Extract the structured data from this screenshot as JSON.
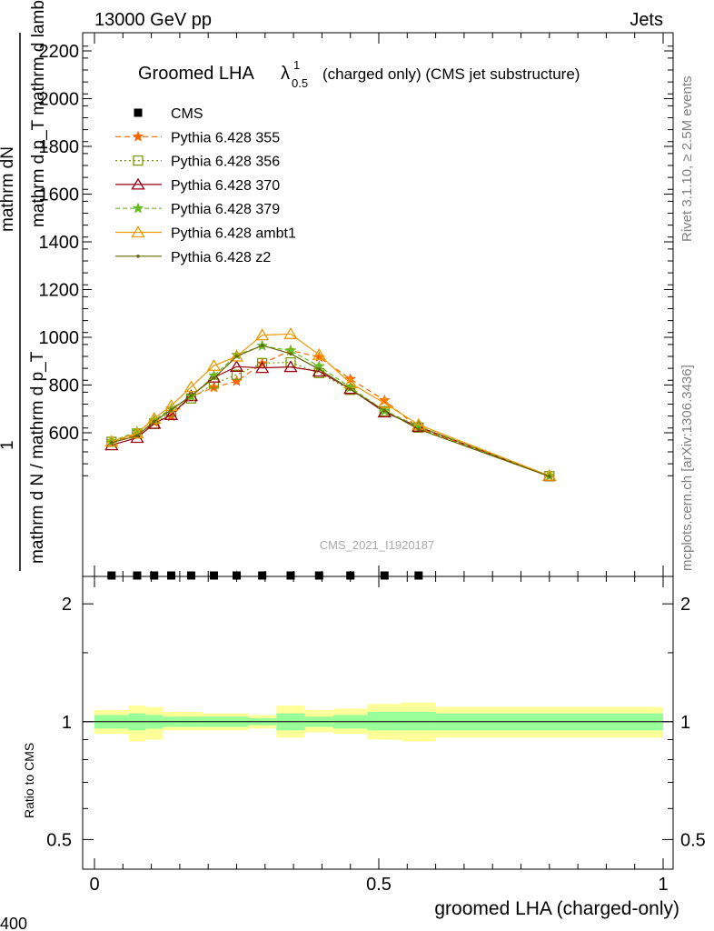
{
  "header": {
    "left": "13000 GeV pp",
    "right": "Jets"
  },
  "side_labels": {
    "rivet": "Rivet 3.1.10, ≥ 2.5M events",
    "mcplots": "mcplots.cern.ch [arXiv:1306.3436]"
  },
  "watermark": "CMS_2021_I1920187",
  "corner_label": "400",
  "chart_data": [
    {
      "type": "line",
      "title": "Groomed LHA",
      "title_lambda": "λ",
      "title_sup": "1",
      "title_sub": "0.5",
      "title_suffix": "(charged only) (CMS jet substructure)",
      "xlabel": "groomed LHA (charged-only)",
      "ylabel_top": "mathrm d N / mathrm d p_T mathrm d lambda",
      "ylabel_top_num": "1",
      "ylabel_mid": "mathrm d N / mathrm d p_T mathrm d p_T mathrm d lambda",
      "ylabel_mid_sub": "T",
      "ylabel_den": "mathrm d N / mathrm d p_T",
      "ylabel_num": "1",
      "ylabel_a": "mathrm dN",
      "ylabel_b": "mathrm d p_T mathrm d lambda",
      "ylabel_c": "1",
      "ylabel_line1": "mathrm dN",
      "ylabel_line2": "mathrm d p_T mathrm d lambda",
      "yticks": [
        "600",
        "800",
        "1000",
        "1200",
        "1400",
        "1600",
        "1800",
        "2000",
        "2200"
      ],
      "xlim": [
        0,
        1
      ],
      "ylim": [
        400,
        2270
      ],
      "series": [
        {
          "name": "CMS",
          "color": "#000000",
          "marker": "square",
          "x": [
            0.03,
            0.075,
            0.105,
            0.135,
            0.17,
            0.21,
            0.25,
            0.295,
            0.345,
            0.395,
            0.45,
            0.51,
            0.57
          ],
          "y": [
            400,
            400,
            400,
            400,
            400,
            400,
            400,
            400,
            400,
            400,
            400,
            400,
            400
          ]
        },
        {
          "name": "Pythia 6.428 355",
          "color": "#ff6600",
          "marker": "star",
          "dash": "6,4",
          "x": [
            0.03,
            0.075,
            0.105,
            0.135,
            0.17,
            0.21,
            0.25,
            0.295,
            0.345,
            0.395,
            0.45,
            0.51,
            0.57,
            0.8
          ],
          "y": [
            560,
            593,
            645,
            668,
            752,
            790,
            816,
            890,
            945,
            917,
            825,
            736,
            620,
            419
          ]
        },
        {
          "name": "Pythia 6.428 356",
          "color": "#779900",
          "marker": "open-square",
          "dash": "2,3",
          "x": [
            0.03,
            0.075,
            0.105,
            0.135,
            0.17,
            0.21,
            0.25,
            0.295,
            0.345,
            0.395,
            0.45,
            0.51,
            0.57,
            0.8
          ],
          "y": [
            562,
            597,
            637,
            688,
            744,
            806,
            843,
            892,
            895,
            850,
            780,
            690,
            622,
            418
          ]
        },
        {
          "name": "Pythia 6.428 370",
          "color": "#990011",
          "marker": "open-triangle",
          "dash": "",
          "x": [
            0.03,
            0.075,
            0.105,
            0.135,
            0.17,
            0.21,
            0.25,
            0.295,
            0.345,
            0.395,
            0.45,
            0.51,
            0.57,
            0.8
          ],
          "y": [
            548,
            579,
            638,
            675,
            754,
            832,
            877,
            872,
            876,
            857,
            784,
            686,
            625,
            419
          ]
        },
        {
          "name": "Pythia 6.428 379",
          "color": "#66bb22",
          "marker": "star",
          "dash": "5,3",
          "x": [
            0.03,
            0.075,
            0.105,
            0.135,
            0.17,
            0.21,
            0.25,
            0.295,
            0.345,
            0.395,
            0.45,
            0.51,
            0.57,
            0.8
          ],
          "y": [
            564,
            605,
            653,
            701,
            752,
            839,
            926,
            964,
            944,
            879,
            790,
            692,
            627,
            420
          ]
        },
        {
          "name": "Pythia 6.428 ambt1",
          "color": "#ee9900",
          "marker": "open-triangle",
          "dash": "",
          "x": [
            0.03,
            0.075,
            0.105,
            0.135,
            0.17,
            0.21,
            0.25,
            0.295,
            0.345,
            0.395,
            0.45,
            0.51,
            0.57,
            0.8
          ],
          "y": [
            563,
            598,
            660,
            713,
            792,
            881,
            920,
            1009,
            1014,
            927,
            808,
            724,
            634,
            420
          ]
        },
        {
          "name": "Pythia 6.428 z2",
          "color": "#666600",
          "marker": "dot",
          "dash": "",
          "x": [
            0.03,
            0.075,
            0.105,
            0.135,
            0.17,
            0.21,
            0.25,
            0.295,
            0.345,
            0.395,
            0.45,
            0.51,
            0.57,
            0.8
          ],
          "y": [
            559,
            587,
            647,
            696,
            755,
            829,
            920,
            966,
            931,
            866,
            783,
            693,
            615,
            417
          ]
        }
      ]
    },
    {
      "type": "area",
      "xlabel": "groomed LHA (charged-only)",
      "ylabel": "Ratio to CMS",
      "yscale": "log",
      "ylim": [
        0.42,
        2.35
      ],
      "yticks": [
        0.5,
        1,
        2
      ],
      "ytick_labels": [
        "0.5",
        "1",
        "2"
      ],
      "xlim": [
        0,
        1
      ],
      "xticks": [
        0,
        0.5,
        1
      ],
      "xtick_labels": [
        "0",
        "0.5",
        "1"
      ],
      "inner_band_color": "#99ff99",
      "outer_band_color": "#ffff99",
      "reference_line": 1,
      "bins": [
        {
          "x0": 0.0,
          "x1": 0.06,
          "inner": [
            0.96,
            1.04
          ],
          "outer": [
            0.93,
            1.07
          ]
        },
        {
          "x0": 0.06,
          "x1": 0.09,
          "inner": [
            0.95,
            1.05
          ],
          "outer": [
            0.89,
            1.1
          ]
        },
        {
          "x0": 0.09,
          "x1": 0.12,
          "inner": [
            0.96,
            1.04
          ],
          "outer": [
            0.9,
            1.09
          ]
        },
        {
          "x0": 0.12,
          "x1": 0.15,
          "inner": [
            0.97,
            1.03
          ],
          "outer": [
            0.95,
            1.06
          ]
        },
        {
          "x0": 0.15,
          "x1": 0.19,
          "inner": [
            0.97,
            1.03
          ],
          "outer": [
            0.95,
            1.06
          ]
        },
        {
          "x0": 0.19,
          "x1": 0.23,
          "inner": [
            0.97,
            1.03
          ],
          "outer": [
            0.95,
            1.05
          ]
        },
        {
          "x0": 0.23,
          "x1": 0.27,
          "inner": [
            0.97,
            1.03
          ],
          "outer": [
            0.95,
            1.05
          ]
        },
        {
          "x0": 0.27,
          "x1": 0.32,
          "inner": [
            0.98,
            1.02
          ],
          "outer": [
            0.96,
            1.04
          ]
        },
        {
          "x0": 0.32,
          "x1": 0.37,
          "inner": [
            0.95,
            1.05
          ],
          "outer": [
            0.91,
            1.1
          ]
        },
        {
          "x0": 0.37,
          "x1": 0.42,
          "inner": [
            0.97,
            1.03
          ],
          "outer": [
            0.94,
            1.07
          ]
        },
        {
          "x0": 0.42,
          "x1": 0.48,
          "inner": [
            0.96,
            1.04
          ],
          "outer": [
            0.93,
            1.08
          ]
        },
        {
          "x0": 0.48,
          "x1": 0.54,
          "inner": [
            0.95,
            1.06
          ],
          "outer": [
            0.9,
            1.11
          ]
        },
        {
          "x0": 0.54,
          "x1": 0.6,
          "inner": [
            0.95,
            1.06
          ],
          "outer": [
            0.89,
            1.12
          ]
        },
        {
          "x0": 0.6,
          "x1": 1.0,
          "inner": [
            0.95,
            1.05
          ],
          "outer": [
            0.91,
            1.09
          ]
        }
      ]
    }
  ]
}
